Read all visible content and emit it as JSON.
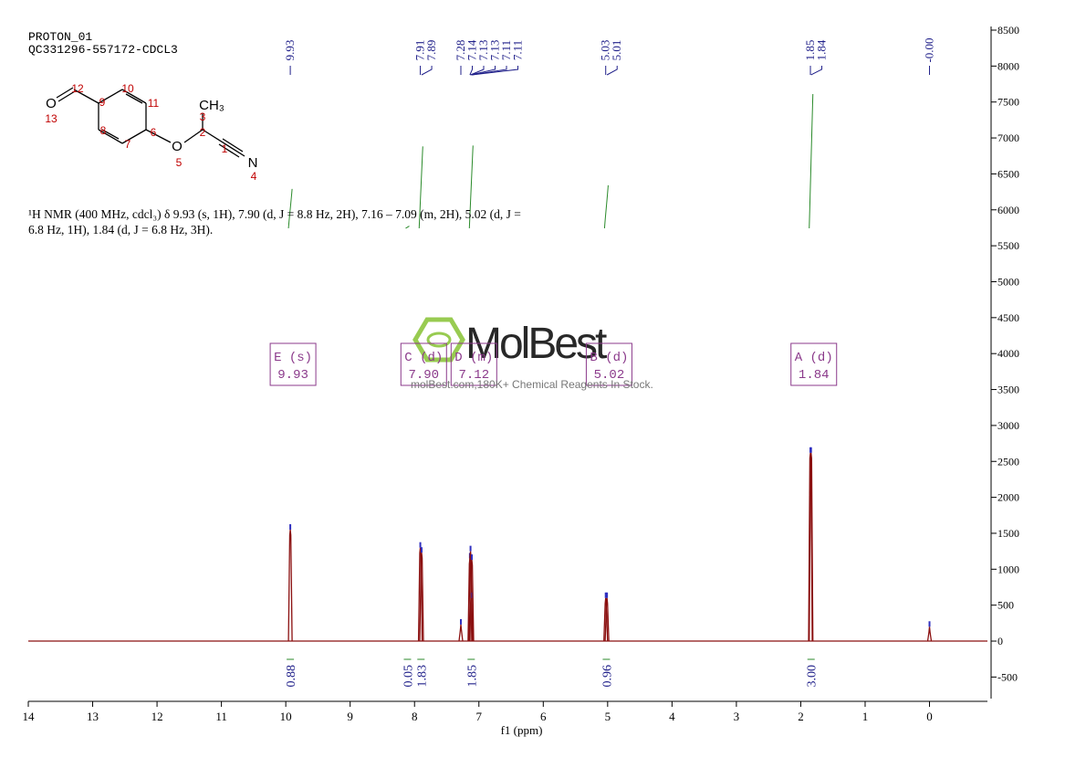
{
  "chart_data": {
    "type": "nmr",
    "title_lines": [
      "PROTON_01",
      "QC331296-557172-CDCL3"
    ],
    "description": "¹H NMR (400 MHz, cdcl₃) δ 9.93 (s, 1H), 7.90 (d, J = 8.8 Hz, 2H), 7.16 – 7.09 (m, 2H), 5.02 (d, J = 6.8 Hz, 1H), 1.84 (d, J = 6.8 Hz, 3H).",
    "structure": {
      "atoms": [
        "O",
        "CH₃",
        "O",
        "N"
      ],
      "locants": [
        "12",
        "10",
        "9",
        "11",
        "13",
        "3",
        "8",
        "6",
        "2",
        "7",
        "1",
        "5",
        "4"
      ]
    },
    "xlabel": "f1 (ppm)",
    "xlim": [
      14,
      -0.9
    ],
    "xticks": [
      14,
      13,
      12,
      11,
      10,
      9,
      8,
      7,
      6,
      5,
      4,
      3,
      2,
      1,
      0
    ],
    "ylim": [
      -800,
      8500
    ],
    "yticks": [
      8500,
      8000,
      7500,
      7000,
      6500,
      6000,
      5500,
      5000,
      4500,
      4000,
      3500,
      3000,
      2500,
      2000,
      1500,
      1000,
      500,
      0,
      -500
    ],
    "color": "#8b1010",
    "peaks": {
      "x": [
        9.93,
        7.91,
        7.89,
        7.28,
        7.14,
        7.13,
        7.12,
        7.11,
        5.03,
        5.01,
        1.85,
        1.84,
        0.0
      ],
      "values": [
        1550,
        1300,
        1230,
        230,
        1150,
        1250,
        600,
        1130,
        600,
        600,
        2620,
        2620,
        200
      ]
    },
    "peak_picks": [
      9.93,
      7.91,
      7.89,
      7.28,
      7.14,
      7.13,
      7.13,
      7.11,
      7.11,
      5.03,
      5.01,
      1.85,
      1.84,
      {
        "value": 0,
        "label": "-0.00"
      }
    ],
    "multiplets": [
      {
        "label": "E (s)",
        "shift": 9.93
      },
      {
        "label": "C (d)",
        "shift": {
          "value": 7.9,
          "label": "7.90"
        }
      },
      {
        "label": "D (m)",
        "shift": 7.12
      },
      {
        "label": "B (d)",
        "shift": 5.02
      },
      {
        "label": "A (d)",
        "shift": 1.84
      }
    ],
    "integrals": {
      "x": [
        9.93,
        8.11,
        7.9,
        7.12,
        5.02,
        1.84
      ],
      "values": [
        0.88,
        0.05,
        1.83,
        1.85,
        0.96,
        3
      ],
      "value_labels": [
        "0.88",
        "0.05",
        "1.83",
        "1.85",
        "0.96",
        "3.00"
      ]
    },
    "watermark": {
      "brand": "MolBest",
      "tagline": "molBest.com,180K+ Chemical Reagents In Stock."
    }
  }
}
